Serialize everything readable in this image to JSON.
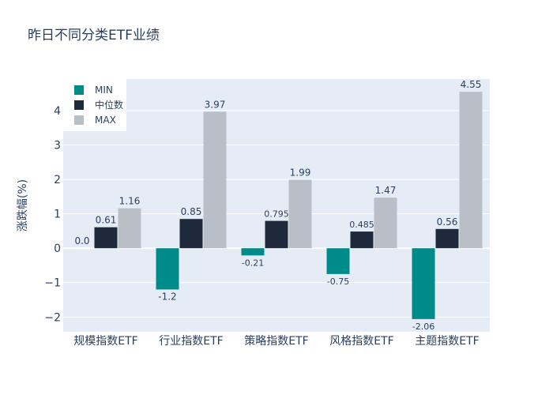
{
  "chart_data": {
    "type": "bar",
    "title": "昨日不同分类ETF业绩",
    "ylabel": "涨跌幅(%)",
    "xlabel": "",
    "categories": [
      "规模指数ETF",
      "行业指数ETF",
      "策略指数ETF",
      "风格指数ETF",
      "主题指数ETF"
    ],
    "series": [
      {
        "name": "MIN",
        "color": "#008b8b",
        "values": [
          0.0,
          -1.2,
          -0.21,
          -0.75,
          -2.06
        ],
        "labels": [
          "0.0",
          "-1.2",
          "-0.21",
          "-0.75",
          "-2.06"
        ]
      },
      {
        "name": "中位数",
        "color": "#1e293b",
        "values": [
          0.61,
          0.85,
          0.795,
          0.485,
          0.56
        ],
        "labels": [
          "0.61",
          "0.85",
          "0.795",
          "0.485",
          "0.56"
        ]
      },
      {
        "name": "MAX",
        "color": "#b8bfc6",
        "values": [
          1.16,
          3.97,
          1.99,
          1.47,
          4.55
        ],
        "labels": [
          "1.16",
          "3.97",
          "1.99",
          "1.47",
          "4.55"
        ]
      }
    ],
    "ylim": [
      -2.43,
      4.92
    ],
    "yticks": [
      -2,
      -1,
      0,
      1,
      2,
      3,
      4
    ],
    "ytick_labels": [
      "−2",
      "−1",
      "0",
      "1",
      "2",
      "3",
      "4"
    ],
    "grid": true,
    "legend_position": "top-left",
    "plot_bgcolor": "#e5ecf6"
  }
}
